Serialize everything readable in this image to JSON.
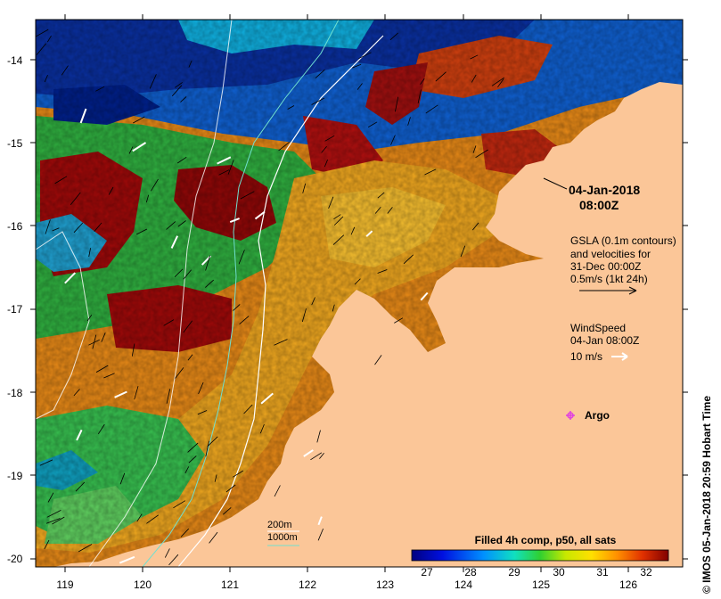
{
  "map": {
    "y_ticks": [
      "-14",
      "-15",
      "-16",
      "-17",
      "-18",
      "-19",
      "-20"
    ],
    "x_ticks": [
      "119",
      "120",
      "121",
      "122",
      "123",
      "124",
      "125",
      "126"
    ],
    "time_label": {
      "date": "04-Jan-2018",
      "time": "08:00Z"
    },
    "gsla_legend": {
      "line1": "GSLA (0.1m contours)",
      "line2": "and velocities for",
      "line3": "31-Dec 00:00Z",
      "line4": "0.5m/s (1kt 24h)"
    },
    "wind_legend": {
      "line1": "WindSpeed",
      "line2": "04-Jan 08:00Z",
      "scale": "10 m/s"
    },
    "argo_label": "Argo",
    "depth_legend": {
      "d200": "200m",
      "d1000": "1000m"
    },
    "colorbar": {
      "title": "Filled 4h comp, p50, all sats",
      "ticks": [
        "27",
        "28",
        "29",
        "30",
        "31",
        "32"
      ]
    },
    "side_credit": "©  IMOS 05-Jan-2018 20:59 Hobart Time",
    "colors": {
      "land": "#fbc698",
      "argo": "#e040e0",
      "contour_200": "#ffffff",
      "contour_1000": "#70e0d0",
      "scale_min": "#000080",
      "scale_max": "#800000"
    }
  }
}
